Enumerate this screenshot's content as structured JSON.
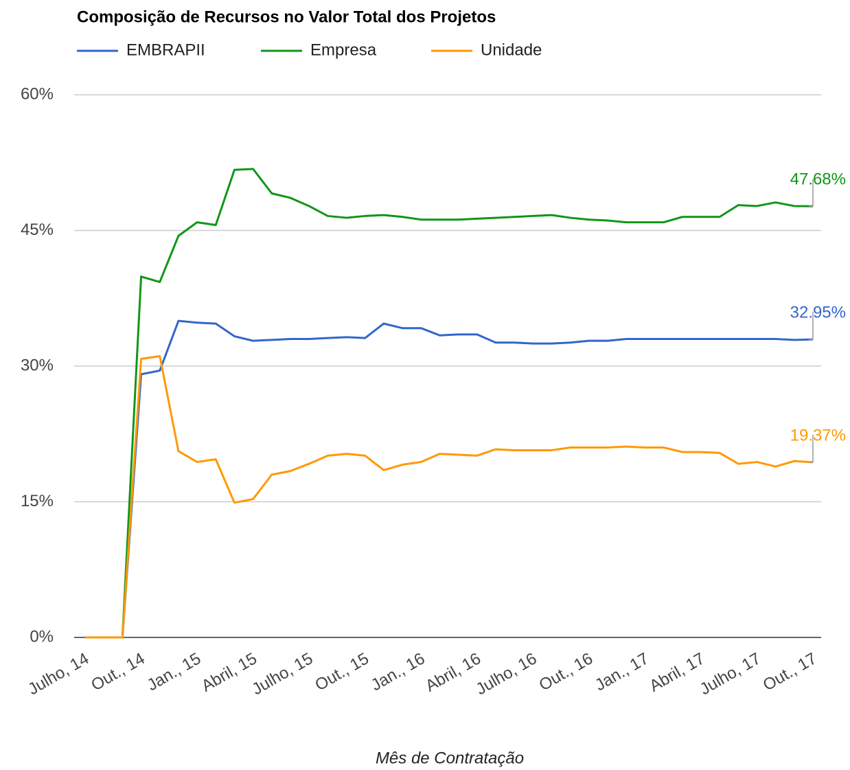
{
  "chart_data": {
    "type": "line",
    "title": "Composição de Recursos no Valor Total dos Projetos",
    "x_label": "Mês de Contratação",
    "categories": [
      "Julho, 14",
      null,
      null,
      "Out., 14",
      null,
      null,
      "Jan., 15",
      null,
      null,
      "Abril, 15",
      null,
      null,
      "Julho, 15",
      null,
      null,
      "Out., 15",
      null,
      null,
      "Jan., 16",
      null,
      null,
      "Abril, 16",
      null,
      null,
      "Julho, 16",
      null,
      null,
      "Out., 16",
      null,
      null,
      "Jan., 17",
      null,
      null,
      "Abril, 17",
      null,
      null,
      "Julho, 17",
      null,
      null,
      "Out., 17"
    ],
    "ylim": [
      0,
      60
    ],
    "yticks": [
      {
        "value": 0,
        "label": "0%"
      },
      {
        "value": 15,
        "label": "15%"
      },
      {
        "value": 30,
        "label": "30%"
      },
      {
        "value": 45,
        "label": "45%"
      },
      {
        "value": 60,
        "label": "60%"
      }
    ],
    "grid": true,
    "legend": "top",
    "series": [
      {
        "name": "EMBRAPII",
        "color": "#3366cc",
        "values": [
          0,
          0,
          0,
          29.1,
          29.5,
          35.0,
          34.8,
          34.7,
          33.3,
          32.8,
          32.9,
          33.0,
          33.0,
          33.1,
          33.2,
          33.1,
          34.7,
          34.2,
          34.2,
          33.4,
          33.5,
          33.5,
          32.6,
          32.6,
          32.5,
          32.5,
          32.6,
          32.8,
          32.8,
          33.0,
          33.0,
          33.0,
          33.0,
          33.0,
          33.0,
          33.0,
          33.0,
          33.0,
          32.9,
          32.95
        ],
        "value_labels": [
          null,
          null,
          null,
          null,
          null,
          null,
          null,
          null,
          null,
          null,
          null,
          null,
          null,
          null,
          null,
          null,
          null,
          null,
          null,
          null,
          null,
          null,
          null,
          null,
          null,
          null,
          null,
          null,
          null,
          null,
          null,
          null,
          null,
          null,
          null,
          null,
          null,
          null,
          null,
          "32.95%"
        ]
      },
      {
        "name": "Empresa",
        "color": "#109618",
        "values": [
          0,
          0,
          0,
          39.9,
          39.3,
          44.4,
          45.9,
          45.6,
          51.7,
          51.8,
          49.1,
          48.6,
          47.7,
          46.6,
          46.4,
          46.6,
          46.7,
          46.5,
          46.2,
          46.2,
          46.2,
          46.3,
          46.4,
          46.5,
          46.6,
          46.7,
          46.4,
          46.2,
          46.1,
          45.9,
          45.9,
          45.9,
          46.5,
          46.5,
          46.5,
          47.8,
          47.7,
          48.1,
          47.7,
          47.68
        ],
        "value_labels": [
          null,
          null,
          null,
          null,
          null,
          null,
          null,
          null,
          null,
          null,
          null,
          null,
          null,
          null,
          null,
          null,
          null,
          null,
          null,
          null,
          null,
          null,
          null,
          null,
          null,
          null,
          null,
          null,
          null,
          null,
          null,
          null,
          null,
          null,
          null,
          null,
          null,
          null,
          null,
          "47.68%"
        ]
      },
      {
        "name": "Unidade",
        "color": "#ff9900",
        "values": [
          0,
          0,
          0,
          30.8,
          31.1,
          20.6,
          19.4,
          19.7,
          14.9,
          15.3,
          18.0,
          18.4,
          19.2,
          20.1,
          20.3,
          20.1,
          18.5,
          19.1,
          19.4,
          20.3,
          20.2,
          20.1,
          20.8,
          20.7,
          20.7,
          20.7,
          21.0,
          21.0,
          21.0,
          21.1,
          21.0,
          21.0,
          20.5,
          20.5,
          20.4,
          19.2,
          19.4,
          18.9,
          19.5,
          19.37
        ],
        "value_labels": [
          null,
          null,
          null,
          null,
          null,
          null,
          null,
          null,
          null,
          null,
          null,
          null,
          null,
          null,
          null,
          null,
          null,
          null,
          null,
          null,
          null,
          null,
          null,
          null,
          null,
          null,
          null,
          null,
          null,
          null,
          null,
          null,
          null,
          null,
          null,
          null,
          null,
          null,
          null,
          "19.37%"
        ]
      }
    ]
  }
}
